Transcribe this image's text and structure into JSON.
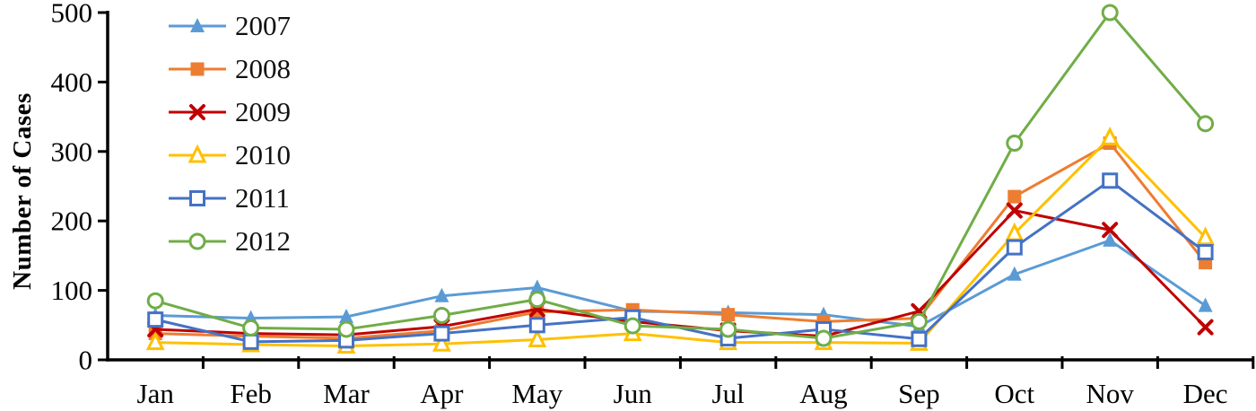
{
  "chart_data": {
    "type": "line",
    "title": "",
    "xlabel": "",
    "ylabel": "Number of Cases",
    "ylim": [
      0,
      500
    ],
    "yticks": [
      0,
      100,
      200,
      300,
      400,
      500
    ],
    "grid": false,
    "legend_position": "top-left-inside",
    "categories": [
      "Jan",
      "Feb",
      "Mar",
      "Apr",
      "May",
      "Jun",
      "Jul",
      "Aug",
      "Sep",
      "Oct",
      "Nov",
      "Dec"
    ],
    "series": [
      {
        "name": "2007",
        "color": "#5B9BD5",
        "marker": "triangle-filled",
        "values": [
          64,
          60,
          62,
          92,
          104,
          70,
          68,
          65,
          48,
          123,
          172,
          78
        ]
      },
      {
        "name": "2008",
        "color": "#ED7D31",
        "marker": "square-filled",
        "values": [
          38,
          34,
          31,
          42,
          69,
          72,
          65,
          55,
          60,
          235,
          312,
          140
        ]
      },
      {
        "name": "2009",
        "color": "#C00000",
        "marker": "x",
        "values": [
          44,
          38,
          36,
          48,
          73,
          55,
          42,
          34,
          70,
          215,
          187,
          47
        ]
      },
      {
        "name": "2010",
        "color": "#FFC000",
        "marker": "triangle-open",
        "values": [
          25,
          22,
          20,
          23,
          29,
          38,
          25,
          25,
          24,
          182,
          320,
          176
        ]
      },
      {
        "name": "2011",
        "color": "#4472C4",
        "marker": "square-open",
        "values": [
          58,
          26,
          28,
          38,
          50,
          61,
          31,
          44,
          30,
          162,
          258,
          155
        ]
      },
      {
        "name": "2012",
        "color": "#70AD47",
        "marker": "circle-open",
        "values": [
          85,
          46,
          44,
          64,
          87,
          49,
          44,
          31,
          55,
          312,
          500,
          340
        ]
      }
    ],
    "axis_color": "#000000",
    "tick_label_color": "#000000"
  }
}
